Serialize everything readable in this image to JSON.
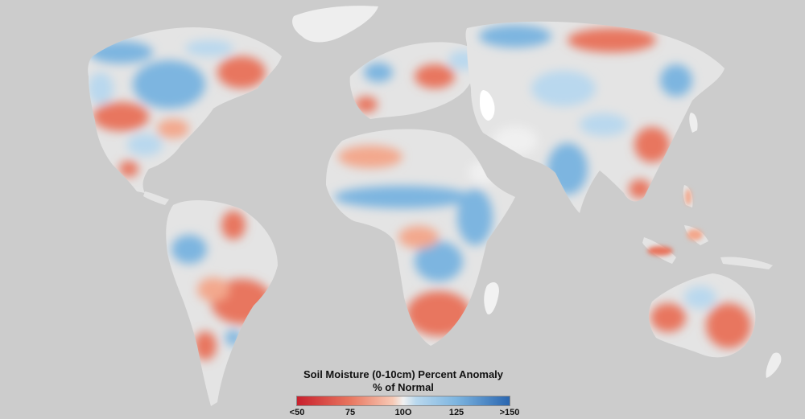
{
  "legend": {
    "title": "Soil Moisture (0-10cm) Percent Anomaly",
    "subtitle": "% of Normal",
    "ticks": [
      "<50",
      "75",
      "10O",
      "125",
      ">150"
    ]
  },
  "colors": {
    "background": "#cccccc",
    "land_neutral": "#e4e4e4",
    "dry": "#e8765f",
    "dry_light": "#f3a88d",
    "wet": "#7db5e0",
    "wet_light": "#b9d8ee",
    "water_inland": "#ffffff"
  }
}
